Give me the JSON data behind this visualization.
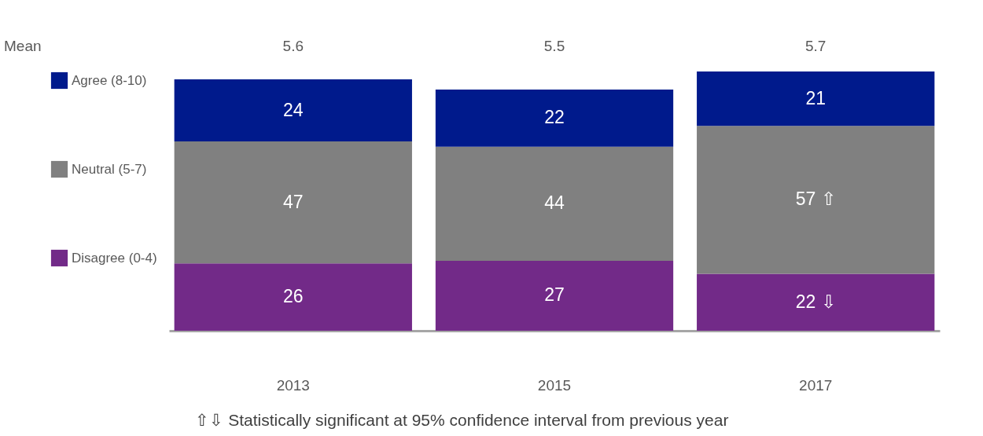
{
  "chart_data": {
    "type": "bar",
    "stacked": true,
    "categories": [
      "2013",
      "2015",
      "2017"
    ],
    "series": [
      {
        "name": "Disagree (0-4)",
        "color": "#722a88",
        "values": [
          26,
          27,
          22
        ],
        "value_labels": [
          "26",
          "27",
          "22 ⇩"
        ]
      },
      {
        "name": "Neutral (5-7)",
        "color": "#808080",
        "values": [
          47,
          44,
          57
        ],
        "value_labels": [
          "47",
          "44",
          "57 ⇧"
        ]
      },
      {
        "name": "Agree (8-10)",
        "color": "#001a8c",
        "values": [
          24,
          22,
          21
        ],
        "value_labels": [
          "24",
          "22",
          "21"
        ]
      }
    ],
    "data_labels": true,
    "legend": "left",
    "grid": false,
    "annotations": [
      "Mean",
      "5.6",
      "5.5",
      "5.7",
      "⇧⇩ Statistically significant at 95% confidence interval from previous year"
    ]
  }
}
